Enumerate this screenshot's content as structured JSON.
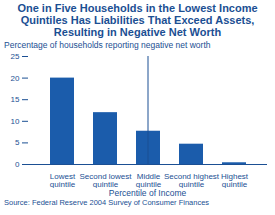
{
  "chart_data": {
    "type": "bar",
    "title": "One in Five Households in the Lowest Income Quintiles Has Liabilities That Exceed Assets, Resulting in Negative Net Worth",
    "subtitle": "Percentage of households reporting negative net worth",
    "x_label": "Percentile of Income",
    "source": "Source: Federal Reserve 2004 Survey of Consumer Finances",
    "categories": [
      "Lowest quintile",
      "Second lowest quintile",
      "Middle quintile",
      "Second highest quintile",
      "Highest quintile"
    ],
    "values": [
      20,
      12,
      7.7,
      4.7,
      0.4
    ],
    "color": "#1b5cab",
    "ylim": [
      0,
      25
    ],
    "yticks": [
      0,
      5,
      10,
      15,
      20,
      25
    ],
    "grid": false
  }
}
